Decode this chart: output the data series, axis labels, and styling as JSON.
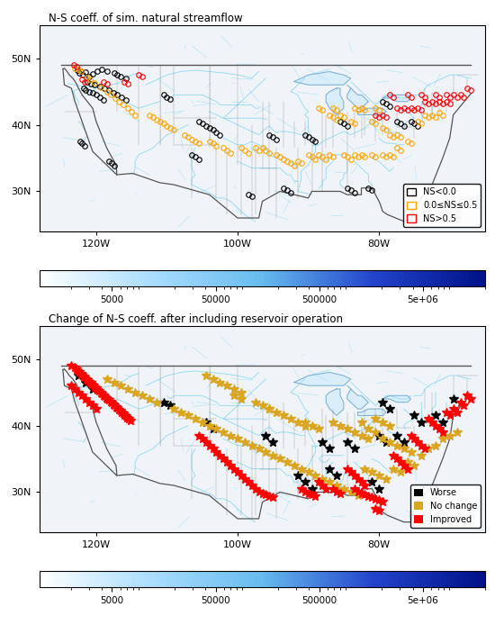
{
  "title1": "N-S coeff. of sim. natural streamflow",
  "title2": "Change of N-S coeff. after including reservoir operation",
  "colorbar_ticks": [
    5000,
    50000,
    500000,
    5000000
  ],
  "colorbar_labels": [
    "5000",
    "50000",
    "500000",
    "5e+06"
  ],
  "colorbar_colors": [
    "#ffffff",
    "#aaddff",
    "#55aaff",
    "#2266dd",
    "#0022aa"
  ],
  "legend1_labels": [
    "NS<0.0",
    "0.0≤NS≤0.5",
    "NS>0.5"
  ],
  "legend1_colors": [
    "black",
    "orange",
    "red"
  ],
  "legend2_labels": [
    "Worse",
    "No change",
    "Improved"
  ],
  "legend2_colors": [
    "black",
    "goldenrod",
    "red"
  ],
  "map_bg": "#f5f5f5",
  "river_color": "#66ccee",
  "state_color": "#888888",
  "border_color": "#444444",
  "xlim": [
    -128,
    -65
  ],
  "ylim": [
    24,
    55
  ],
  "xticks": [
    -120,
    -100,
    -80
  ],
  "xtick_labels": [
    "120W",
    "100W",
    "80W"
  ],
  "yticks": [
    30,
    40,
    50
  ],
  "ytick_labels": [
    "30N",
    "40N",
    "50N"
  ],
  "fig_width": 5.5,
  "fig_height": 6.94,
  "dpi": 100,
  "panel1_circles_black": [
    [
      -122.7,
      48.2
    ],
    [
      -122.4,
      47.8
    ],
    [
      -121.9,
      47.5
    ],
    [
      -121.5,
      47.9
    ],
    [
      -122.1,
      48.1
    ],
    [
      -121.0,
      47.3
    ],
    [
      -120.5,
      47.6
    ],
    [
      -119.8,
      48.0
    ],
    [
      -119.2,
      48.3
    ],
    [
      -118.5,
      48.1
    ],
    [
      -117.5,
      47.8
    ],
    [
      -117.0,
      47.5
    ],
    [
      -116.5,
      47.2
    ],
    [
      -115.8,
      47.0
    ],
    [
      -121.2,
      46.5
    ],
    [
      -120.8,
      46.2
    ],
    [
      -120.2,
      46.0
    ],
    [
      -119.5,
      45.8
    ],
    [
      -118.8,
      45.5
    ],
    [
      -118.2,
      45.2
    ],
    [
      -117.6,
      44.8
    ],
    [
      -117.0,
      44.5
    ],
    [
      -116.4,
      44.2
    ],
    [
      -115.8,
      43.8
    ],
    [
      -121.8,
      45.5
    ],
    [
      -121.5,
      45.2
    ],
    [
      -121.0,
      45.0
    ],
    [
      -120.5,
      44.8
    ],
    [
      -120.0,
      44.5
    ],
    [
      -119.5,
      44.2
    ],
    [
      -119.0,
      43.8
    ],
    [
      -110.5,
      44.5
    ],
    [
      -110.0,
      44.2
    ],
    [
      -109.5,
      43.9
    ],
    [
      -105.5,
      40.5
    ],
    [
      -105.0,
      40.2
    ],
    [
      -104.5,
      39.8
    ],
    [
      -104.0,
      39.5
    ],
    [
      -103.5,
      39.2
    ],
    [
      -103.0,
      38.8
    ],
    [
      -102.5,
      38.5
    ],
    [
      -95.5,
      38.5
    ],
    [
      -95.0,
      38.2
    ],
    [
      -94.5,
      37.8
    ],
    [
      -90.5,
      38.5
    ],
    [
      -90.0,
      38.2
    ],
    [
      -89.5,
      37.8
    ],
    [
      -89.0,
      37.5
    ],
    [
      -85.5,
      40.5
    ],
    [
      -85.0,
      40.2
    ],
    [
      -84.5,
      39.8
    ],
    [
      -79.5,
      43.5
    ],
    [
      -79.0,
      43.2
    ],
    [
      -78.5,
      42.8
    ],
    [
      -77.5,
      40.5
    ],
    [
      -77.0,
      40.2
    ],
    [
      -76.5,
      39.8
    ],
    [
      -75.5,
      40.5
    ],
    [
      -75.0,
      40.2
    ],
    [
      -74.5,
      39.8
    ],
    [
      -122.3,
      37.5
    ],
    [
      -122.0,
      37.2
    ],
    [
      -121.7,
      36.8
    ],
    [
      -118.2,
      34.5
    ],
    [
      -117.8,
      34.2
    ],
    [
      -117.4,
      33.8
    ],
    [
      -106.5,
      35.5
    ],
    [
      -106.0,
      35.2
    ],
    [
      -105.5,
      34.8
    ],
    [
      -98.5,
      29.5
    ],
    [
      -98.0,
      29.2
    ],
    [
      -84.5,
      30.5
    ],
    [
      -84.0,
      30.2
    ],
    [
      -83.5,
      29.8
    ],
    [
      -81.5,
      30.5
    ],
    [
      -81.0,
      30.2
    ],
    [
      -93.5,
      30.5
    ],
    [
      -93.0,
      30.2
    ],
    [
      -92.5,
      29.8
    ]
  ],
  "panel1_circles_orange": [
    [
      -123.0,
      48.5
    ],
    [
      -122.5,
      48.3
    ],
    [
      -122.2,
      48.0
    ],
    [
      -121.3,
      47.1
    ],
    [
      -120.9,
      46.8
    ],
    [
      -120.3,
      46.3
    ],
    [
      -119.3,
      45.6
    ],
    [
      -118.5,
      45.0
    ],
    [
      -118.0,
      44.5
    ],
    [
      -117.3,
      44.0
    ],
    [
      -116.8,
      43.5
    ],
    [
      -116.2,
      43.0
    ],
    [
      -115.5,
      42.5
    ],
    [
      -115.0,
      42.0
    ],
    [
      -114.5,
      41.5
    ],
    [
      -112.5,
      41.5
    ],
    [
      -112.0,
      41.2
    ],
    [
      -111.5,
      40.8
    ],
    [
      -111.0,
      40.5
    ],
    [
      -110.5,
      40.2
    ],
    [
      -110.0,
      39.8
    ],
    [
      -109.5,
      39.5
    ],
    [
      -109.0,
      39.2
    ],
    [
      -107.5,
      38.5
    ],
    [
      -107.0,
      38.2
    ],
    [
      -106.5,
      37.8
    ],
    [
      -106.0,
      37.5
    ],
    [
      -105.5,
      37.2
    ],
    [
      -104.0,
      37.5
    ],
    [
      -103.5,
      37.2
    ],
    [
      -103.0,
      36.8
    ],
    [
      -102.0,
      36.5
    ],
    [
      -101.5,
      36.2
    ],
    [
      -101.0,
      35.8
    ],
    [
      -99.5,
      36.5
    ],
    [
      -99.0,
      36.2
    ],
    [
      -98.5,
      35.8
    ],
    [
      -97.5,
      36.5
    ],
    [
      -97.0,
      36.2
    ],
    [
      -96.5,
      36.5
    ],
    [
      -96.0,
      36.2
    ],
    [
      -95.5,
      35.8
    ],
    [
      -94.5,
      35.5
    ],
    [
      -94.0,
      35.2
    ],
    [
      -93.5,
      34.8
    ],
    [
      -93.0,
      34.5
    ],
    [
      -92.5,
      34.2
    ],
    [
      -92.0,
      33.8
    ],
    [
      -91.5,
      34.5
    ],
    [
      -91.0,
      34.2
    ],
    [
      -90.0,
      35.5
    ],
    [
      -89.5,
      35.2
    ],
    [
      -89.0,
      34.8
    ],
    [
      -88.5,
      35.5
    ],
    [
      -88.0,
      35.2
    ],
    [
      -87.5,
      34.8
    ],
    [
      -87.0,
      35.5
    ],
    [
      -86.5,
      35.2
    ],
    [
      -85.0,
      35.5
    ],
    [
      -84.5,
      35.2
    ],
    [
      -84.0,
      34.8
    ],
    [
      -83.5,
      35.5
    ],
    [
      -83.0,
      35.2
    ],
    [
      -82.5,
      35.5
    ],
    [
      -82.0,
      35.2
    ],
    [
      -81.0,
      35.5
    ],
    [
      -80.5,
      35.2
    ],
    [
      -79.5,
      35.5
    ],
    [
      -79.0,
      35.2
    ],
    [
      -78.5,
      35.5
    ],
    [
      -78.0,
      35.2
    ],
    [
      -77.5,
      36.5
    ],
    [
      -77.0,
      36.2
    ],
    [
      -76.0,
      37.5
    ],
    [
      -75.5,
      37.2
    ],
    [
      -74.5,
      40.5
    ],
    [
      -74.0,
      40.2
    ],
    [
      -73.5,
      41.5
    ],
    [
      -73.0,
      41.2
    ],
    [
      -72.5,
      41.5
    ],
    [
      -72.0,
      41.2
    ],
    [
      -71.5,
      41.8
    ],
    [
      -71.0,
      41.5
    ],
    [
      -80.5,
      42.5
    ],
    [
      -80.0,
      42.2
    ],
    [
      -82.5,
      42.5
    ],
    [
      -82.0,
      42.2
    ],
    [
      -83.5,
      42.5
    ],
    [
      -83.0,
      42.2
    ],
    [
      -86.5,
      42.5
    ],
    [
      -86.0,
      42.2
    ],
    [
      -88.5,
      42.5
    ],
    [
      -88.0,
      42.2
    ],
    [
      -87.0,
      41.5
    ],
    [
      -86.5,
      41.2
    ],
    [
      -86.0,
      40.8
    ],
    [
      -85.5,
      41.5
    ],
    [
      -85.0,
      41.2
    ],
    [
      -84.0,
      40.5
    ],
    [
      -83.5,
      40.2
    ],
    [
      -81.0,
      40.5
    ],
    [
      -80.5,
      40.2
    ],
    [
      -79.5,
      39.5
    ],
    [
      -79.0,
      39.2
    ],
    [
      -78.5,
      38.5
    ],
    [
      -78.0,
      38.2
    ],
    [
      -77.5,
      38.5
    ],
    [
      -77.0,
      38.2
    ]
  ],
  "panel1_circles_red": [
    [
      -123.2,
      49.0
    ],
    [
      -122.8,
      48.8
    ],
    [
      -122.0,
      46.8
    ],
    [
      -121.6,
      46.5
    ],
    [
      -119.0,
      46.5
    ],
    [
      -118.5,
      46.2
    ],
    [
      -116.0,
      46.5
    ],
    [
      -115.5,
      46.2
    ],
    [
      -114.0,
      47.5
    ],
    [
      -113.5,
      47.2
    ],
    [
      -78.5,
      44.5
    ],
    [
      -78.0,
      44.2
    ],
    [
      -76.0,
      44.5
    ],
    [
      -75.5,
      44.2
    ],
    [
      -74.0,
      44.5
    ],
    [
      -73.5,
      44.2
    ],
    [
      -72.0,
      44.5
    ],
    [
      -71.5,
      44.2
    ],
    [
      -70.5,
      44.5
    ],
    [
      -70.0,
      44.2
    ],
    [
      -69.5,
      44.5
    ],
    [
      -69.0,
      44.2
    ],
    [
      -68.5,
      44.5
    ],
    [
      -68.0,
      44.2
    ],
    [
      -67.5,
      45.5
    ],
    [
      -67.0,
      45.2
    ],
    [
      -70.5,
      43.5
    ],
    [
      -70.0,
      43.2
    ],
    [
      -71.5,
      43.5
    ],
    [
      -71.0,
      43.2
    ],
    [
      -72.5,
      43.5
    ],
    [
      -72.0,
      43.2
    ],
    [
      -73.5,
      43.5
    ],
    [
      -73.0,
      43.2
    ],
    [
      -74.5,
      42.5
    ],
    [
      -74.0,
      42.2
    ],
    [
      -75.5,
      42.5
    ],
    [
      -75.0,
      42.2
    ],
    [
      -76.5,
      42.5
    ],
    [
      -76.0,
      42.2
    ],
    [
      -77.5,
      42.5
    ],
    [
      -77.0,
      42.2
    ],
    [
      -80.5,
      41.5
    ],
    [
      -80.0,
      41.2
    ],
    [
      -79.5,
      41.5
    ],
    [
      -79.0,
      41.2
    ]
  ],
  "panel2_stars_black": [
    [
      -122.5,
      47.5
    ],
    [
      -121.5,
      46.5
    ],
    [
      -120.5,
      45.5
    ],
    [
      -110.5,
      43.5
    ],
    [
      -109.5,
      43.0
    ],
    [
      -104.5,
      40.5
    ],
    [
      -103.5,
      39.5
    ],
    [
      -96.0,
      38.5
    ],
    [
      -95.0,
      37.5
    ],
    [
      -88.0,
      37.5
    ],
    [
      -87.0,
      36.5
    ],
    [
      -84.5,
      37.5
    ],
    [
      -83.5,
      36.5
    ],
    [
      -80.0,
      38.5
    ],
    [
      -79.0,
      37.5
    ],
    [
      -91.5,
      32.5
    ],
    [
      -90.5,
      31.5
    ],
    [
      -89.5,
      30.5
    ],
    [
      -87.0,
      33.5
    ],
    [
      -86.0,
      32.5
    ],
    [
      -81.0,
      31.5
    ],
    [
      -80.0,
      30.5
    ],
    [
      -77.5,
      38.5
    ],
    [
      -76.5,
      37.5
    ],
    [
      -75.0,
      41.5
    ],
    [
      -74.0,
      40.5
    ],
    [
      -72.0,
      41.5
    ],
    [
      -71.0,
      40.5
    ],
    [
      -69.5,
      44.0
    ],
    [
      -79.5,
      43.5
    ],
    [
      -78.5,
      42.5
    ]
  ],
  "panel2_stars_gold": [
    [
      -118.5,
      47.0
    ],
    [
      -117.5,
      46.5
    ],
    [
      -116.5,
      46.0
    ],
    [
      -115.5,
      45.5
    ],
    [
      -114.5,
      45.0
    ],
    [
      -113.5,
      44.5
    ],
    [
      -112.5,
      44.0
    ],
    [
      -111.5,
      43.5
    ],
    [
      -109.0,
      42.5
    ],
    [
      -108.0,
      42.0
    ],
    [
      -107.0,
      41.5
    ],
    [
      -106.0,
      41.0
    ],
    [
      -105.0,
      40.5
    ],
    [
      -104.0,
      40.0
    ],
    [
      -103.0,
      39.5
    ],
    [
      -102.0,
      39.0
    ],
    [
      -101.0,
      38.5
    ],
    [
      -100.0,
      38.0
    ],
    [
      -99.0,
      37.5
    ],
    [
      -98.0,
      37.0
    ],
    [
      -97.0,
      36.5
    ],
    [
      -96.0,
      36.0
    ],
    [
      -95.0,
      35.5
    ],
    [
      -94.0,
      35.0
    ],
    [
      -93.0,
      34.5
    ],
    [
      -92.0,
      34.0
    ],
    [
      -91.0,
      33.5
    ],
    [
      -90.0,
      33.0
    ],
    [
      -89.0,
      32.5
    ],
    [
      -88.0,
      32.0
    ],
    [
      -87.0,
      31.5
    ],
    [
      -86.0,
      31.0
    ],
    [
      -85.0,
      30.5
    ],
    [
      -84.0,
      30.0
    ],
    [
      -83.0,
      29.5
    ],
    [
      -82.0,
      33.5
    ],
    [
      -81.0,
      33.0
    ],
    [
      -80.0,
      32.5
    ],
    [
      -79.0,
      32.0
    ],
    [
      -78.0,
      33.5
    ],
    [
      -77.0,
      33.0
    ],
    [
      -76.0,
      34.5
    ],
    [
      -75.0,
      34.0
    ],
    [
      -74.0,
      35.5
    ],
    [
      -73.0,
      36.5
    ],
    [
      -72.0,
      37.0
    ],
    [
      -71.0,
      38.0
    ],
    [
      -70.0,
      38.5
    ],
    [
      -69.0,
      39.0
    ],
    [
      -82.5,
      40.5
    ],
    [
      -81.5,
      39.5
    ],
    [
      -80.5,
      39.0
    ],
    [
      -79.5,
      38.0
    ],
    [
      -78.5,
      37.5
    ],
    [
      -77.5,
      37.0
    ],
    [
      -76.5,
      36.5
    ],
    [
      -75.5,
      36.0
    ],
    [
      -86.5,
      40.5
    ],
    [
      -85.5,
      40.0
    ],
    [
      -84.5,
      39.5
    ],
    [
      -83.5,
      39.0
    ],
    [
      -82.5,
      38.5
    ],
    [
      -81.5,
      38.0
    ],
    [
      -80.5,
      41.0
    ],
    [
      -79.5,
      40.5
    ],
    [
      -78.5,
      40.0
    ],
    [
      -90.5,
      40.5
    ],
    [
      -89.5,
      40.0
    ],
    [
      -88.5,
      39.5
    ],
    [
      -95.5,
      42.5
    ],
    [
      -94.5,
      42.0
    ],
    [
      -93.5,
      41.5
    ],
    [
      -92.5,
      41.0
    ],
    [
      -91.5,
      40.5
    ],
    [
      -90.5,
      40.0
    ],
    [
      -97.5,
      43.5
    ],
    [
      -96.5,
      43.0
    ],
    [
      -95.5,
      42.5
    ],
    [
      -100.5,
      44.5
    ],
    [
      -99.5,
      44.0
    ],
    [
      -104.5,
      47.5
    ],
    [
      -103.5,
      47.0
    ],
    [
      -102.5,
      46.5
    ],
    [
      -101.5,
      46.0
    ],
    [
      -100.5,
      45.5
    ],
    [
      -99.5,
      45.0
    ]
  ],
  "panel2_stars_red": [
    [
      -123.5,
      49.0
    ],
    [
      -123.0,
      48.8
    ],
    [
      -122.8,
      48.5
    ],
    [
      -122.6,
      48.2
    ],
    [
      -122.4,
      48.0
    ],
    [
      -122.2,
      47.8
    ],
    [
      -122.0,
      47.6
    ],
    [
      -121.8,
      47.4
    ],
    [
      -121.6,
      47.2
    ],
    [
      -121.4,
      47.0
    ],
    [
      -121.2,
      46.8
    ],
    [
      -121.0,
      46.6
    ],
    [
      -120.8,
      46.4
    ],
    [
      -120.6,
      46.2
    ],
    [
      -120.4,
      46.0
    ],
    [
      -120.2,
      45.8
    ],
    [
      -120.0,
      45.6
    ],
    [
      -119.8,
      45.4
    ],
    [
      -119.6,
      45.2
    ],
    [
      -119.4,
      45.0
    ],
    [
      -119.2,
      44.8
    ],
    [
      -119.0,
      44.6
    ],
    [
      -118.8,
      44.4
    ],
    [
      -118.6,
      44.2
    ],
    [
      -118.4,
      44.0
    ],
    [
      -118.2,
      43.8
    ],
    [
      -118.0,
      43.6
    ],
    [
      -117.8,
      43.4
    ],
    [
      -117.6,
      43.2
    ],
    [
      -117.4,
      43.0
    ],
    [
      -117.2,
      42.8
    ],
    [
      -117.0,
      42.6
    ],
    [
      -116.8,
      42.4
    ],
    [
      -116.6,
      42.2
    ],
    [
      -116.4,
      42.0
    ],
    [
      -116.2,
      41.8
    ],
    [
      -116.0,
      41.6
    ],
    [
      -115.8,
      41.4
    ],
    [
      -115.6,
      41.2
    ],
    [
      -115.4,
      41.0
    ],
    [
      -115.2,
      40.8
    ],
    [
      -123.5,
      46.0
    ],
    [
      -123.0,
      45.5
    ],
    [
      -122.5,
      45.0
    ],
    [
      -122.0,
      44.5
    ],
    [
      -121.5,
      44.0
    ],
    [
      -121.0,
      43.5
    ],
    [
      -120.5,
      43.0
    ],
    [
      -120.0,
      42.5
    ],
    [
      -105.5,
      38.5
    ],
    [
      -105.0,
      38.0
    ],
    [
      -104.5,
      37.5
    ],
    [
      -104.0,
      37.0
    ],
    [
      -103.5,
      36.5
    ],
    [
      -103.0,
      36.0
    ],
    [
      -102.5,
      35.5
    ],
    [
      -102.0,
      35.0
    ],
    [
      -101.5,
      34.5
    ],
    [
      -101.0,
      34.0
    ],
    [
      -100.5,
      33.5
    ],
    [
      -100.0,
      33.0
    ],
    [
      -99.5,
      32.5
    ],
    [
      -99.0,
      32.0
    ],
    [
      -98.5,
      31.5
    ],
    [
      -98.0,
      31.0
    ],
    [
      -97.5,
      30.5
    ],
    [
      -97.0,
      30.0
    ],
    [
      -96.5,
      29.8
    ],
    [
      -96.0,
      29.6
    ],
    [
      -95.5,
      29.4
    ],
    [
      -95.0,
      29.2
    ],
    [
      -91.0,
      30.5
    ],
    [
      -90.5,
      30.0
    ],
    [
      -90.0,
      29.8
    ],
    [
      -89.5,
      29.6
    ],
    [
      -89.0,
      29.4
    ],
    [
      -86.5,
      30.5
    ],
    [
      -86.0,
      30.0
    ],
    [
      -85.5,
      29.8
    ],
    [
      -83.5,
      30.5
    ],
    [
      -83.0,
      30.0
    ],
    [
      -82.5,
      29.8
    ],
    [
      -82.0,
      29.6
    ],
    [
      -81.5,
      29.4
    ],
    [
      -81.0,
      29.2
    ],
    [
      -80.5,
      29.0
    ],
    [
      -80.0,
      28.8
    ],
    [
      -79.5,
      28.6
    ],
    [
      -80.5,
      27.5
    ],
    [
      -80.0,
      27.2
    ],
    [
      -88.5,
      31.5
    ],
    [
      -88.0,
      31.0
    ],
    [
      -87.5,
      30.5
    ],
    [
      -84.5,
      33.5
    ],
    [
      -84.0,
      33.0
    ],
    [
      -83.5,
      32.5
    ],
    [
      -83.0,
      32.0
    ],
    [
      -82.5,
      31.5
    ],
    [
      -82.0,
      31.0
    ],
    [
      -78.0,
      35.5
    ],
    [
      -77.5,
      35.0
    ],
    [
      -77.0,
      34.5
    ],
    [
      -76.5,
      34.0
    ],
    [
      -76.0,
      33.5
    ],
    [
      -75.5,
      38.5
    ],
    [
      -75.0,
      38.0
    ],
    [
      -74.5,
      37.5
    ],
    [
      -74.0,
      37.0
    ],
    [
      -73.5,
      36.5
    ],
    [
      -73.0,
      41.0
    ],
    [
      -72.5,
      40.5
    ],
    [
      -72.0,
      40.0
    ],
    [
      -71.5,
      39.5
    ],
    [
      -71.0,
      39.0
    ],
    [
      -70.5,
      42.0
    ],
    [
      -70.0,
      41.5
    ],
    [
      -69.5,
      42.5
    ],
    [
      -69.0,
      42.0
    ],
    [
      -68.5,
      43.5
    ],
    [
      -68.0,
      43.0
    ],
    [
      -67.5,
      44.5
    ],
    [
      -67.0,
      44.0
    ]
  ]
}
